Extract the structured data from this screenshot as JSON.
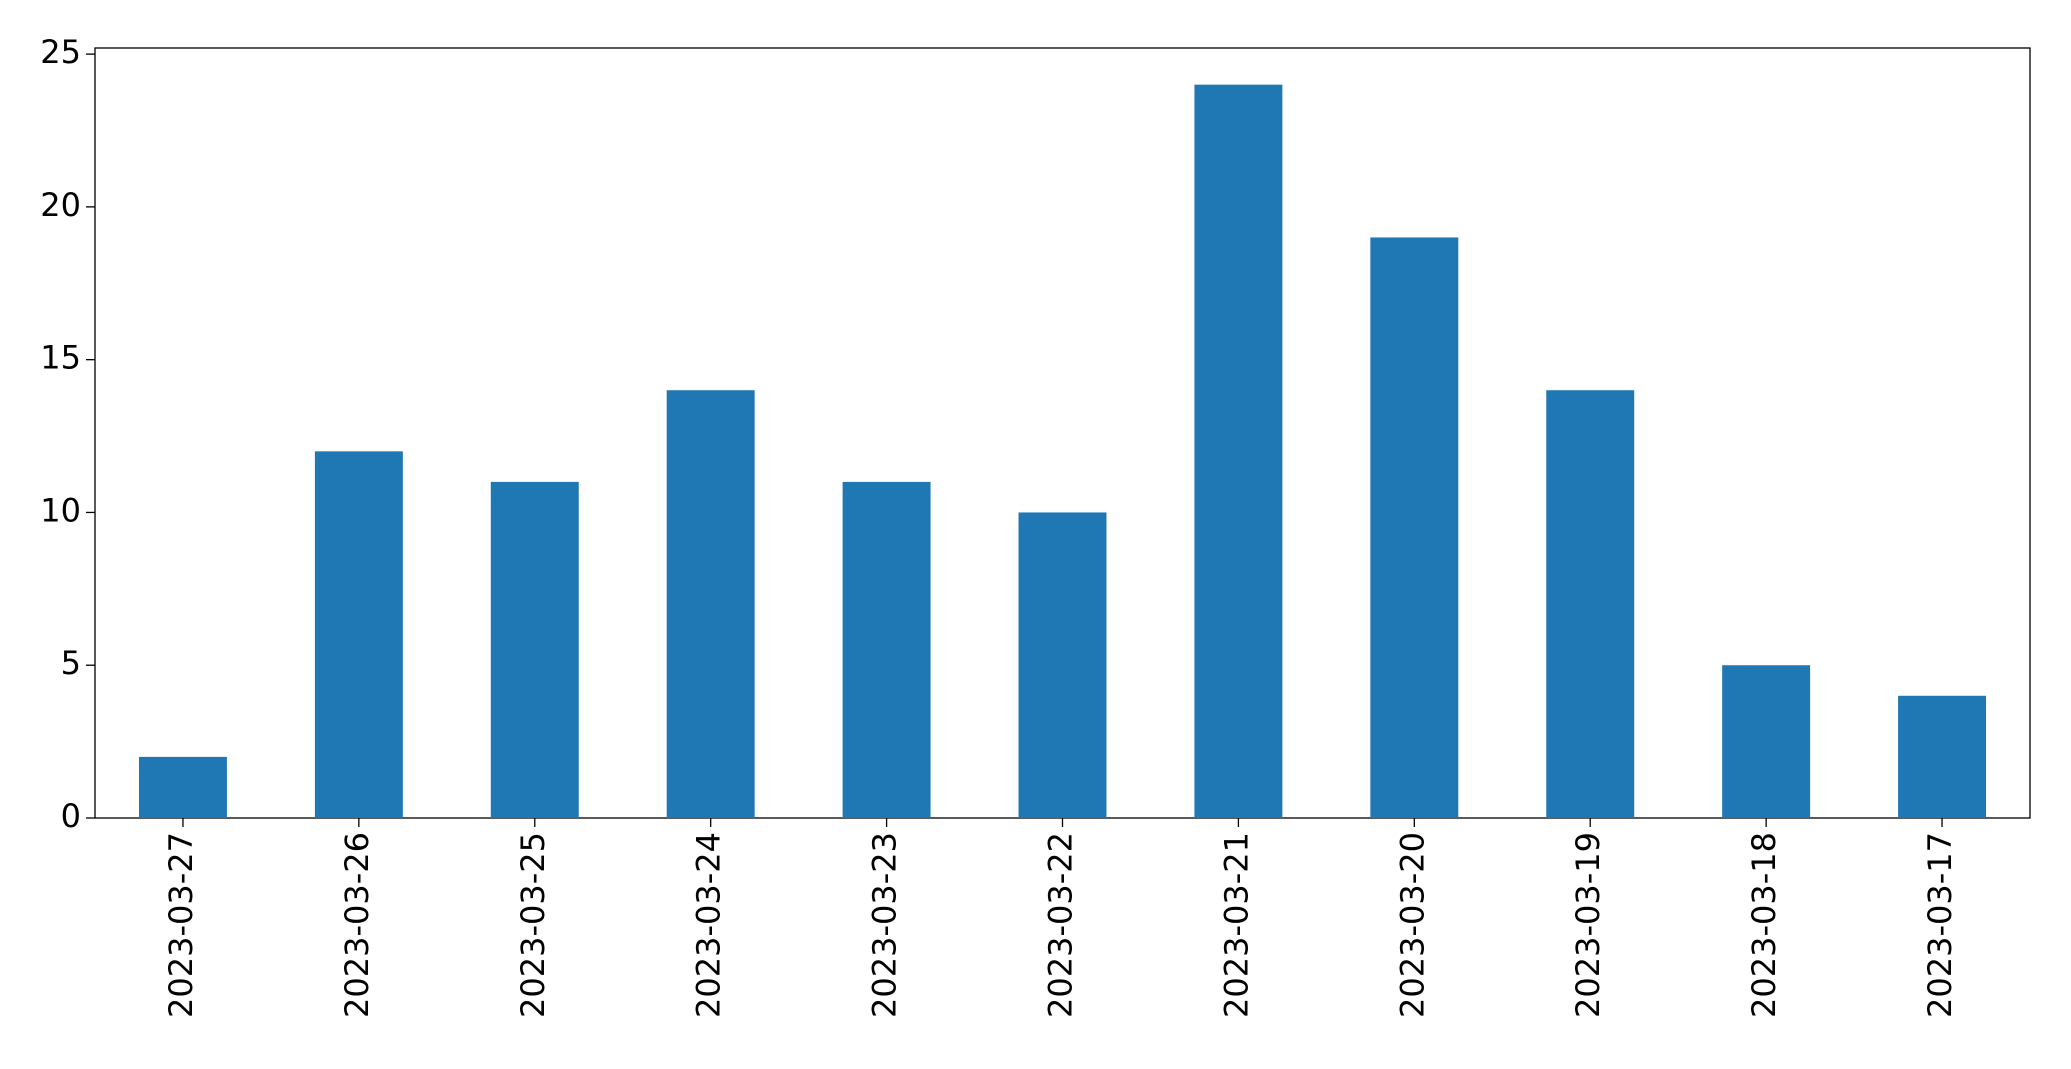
{
  "chart_data": {
    "type": "bar",
    "categories": [
      "2023-03-27",
      "2023-03-26",
      "2023-03-25",
      "2023-03-24",
      "2023-03-23",
      "2023-03-22",
      "2023-03-21",
      "2023-03-20",
      "2023-03-19",
      "2023-03-18",
      "2023-03-17"
    ],
    "values": [
      2,
      12,
      11,
      14,
      11,
      10,
      24,
      19,
      14,
      5,
      4
    ],
    "color": "#1f77b4",
    "ylim": [
      0,
      25.2
    ],
    "yticks": [
      0,
      5,
      10,
      15,
      20,
      25
    ],
    "grid": false
  }
}
